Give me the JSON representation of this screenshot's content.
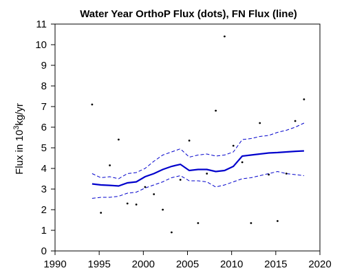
{
  "chart_data": {
    "type": "line",
    "title": "Water Year OrthoP Flux (dots), FN Flux (line)",
    "ylabel": {
      "prefix": "Flux in 10",
      "superscript": "3",
      "suffix": "kg/yr"
    },
    "xlabel": "",
    "xlim": [
      1990,
      2020
    ],
    "ylim": [
      0,
      11
    ],
    "xticks": [
      1990,
      1995,
      2000,
      2005,
      2010,
      2015,
      2020
    ],
    "yticks": [
      0,
      1,
      2,
      3,
      4,
      5,
      6,
      7,
      8,
      9,
      10,
      11
    ],
    "grid": false,
    "legend": "none",
    "colors": {
      "series": "#0000cc",
      "dots": "#000000",
      "axis": "#000000"
    },
    "points": {
      "x": [
        1994.2,
        1995.2,
        1996.2,
        1997.2,
        1998.2,
        1999.2,
        2000.2,
        2001.2,
        2002.2,
        2003.2,
        2004.2,
        2005.2,
        2006.2,
        2007.2,
        2008.2,
        2009.2,
        2010.2,
        2011.2,
        2012.2,
        2013.2,
        2014.2,
        2015.2,
        2016.2,
        2017.2,
        2018.2
      ],
      "y": [
        7.1,
        1.85,
        4.15,
        5.4,
        2.3,
        2.25,
        3.1,
        2.75,
        2.0,
        0.9,
        3.45,
        5.35,
        1.35,
        3.75,
        6.8,
        10.4,
        5.1,
        4.3,
        1.35,
        6.2,
        3.7,
        1.45,
        3.75,
        6.3,
        7.35
      ]
    },
    "series": [
      {
        "style": "solid",
        "x": [
          1994.2,
          1995.2,
          1996.2,
          1997.2,
          1998.2,
          1999.2,
          2000.2,
          2001.2,
          2002.2,
          2003.2,
          2004.2,
          2005.2,
          2006.2,
          2007.2,
          2008.2,
          2009.2,
          2010.2,
          2011.2,
          2012.2,
          2013.2,
          2014.2,
          2015.2,
          2016.2,
          2017.2,
          2018.2
        ],
        "y": [
          3.25,
          3.2,
          3.18,
          3.15,
          3.3,
          3.35,
          3.6,
          3.75,
          3.95,
          4.1,
          4.2,
          3.9,
          3.95,
          3.95,
          3.85,
          3.9,
          4.1,
          4.6,
          4.65,
          4.7,
          4.75,
          4.77,
          4.8,
          4.83,
          4.85
        ]
      },
      {
        "style": "dashed",
        "x": [
          1994.2,
          1995.2,
          1996.2,
          1997.2,
          1998.2,
          1999.2,
          2000.2,
          2001.2,
          2002.2,
          2003.2,
          2004.2,
          2005.2,
          2006.2,
          2007.2,
          2008.2,
          2009.2,
          2010.2,
          2011.2,
          2012.2,
          2013.2,
          2014.2,
          2015.2,
          2016.2,
          2017.2,
          2018.2
        ],
        "y": [
          3.75,
          3.55,
          3.6,
          3.5,
          3.75,
          3.8,
          4.0,
          4.35,
          4.65,
          4.8,
          4.95,
          4.55,
          4.65,
          4.7,
          4.6,
          4.65,
          4.8,
          5.4,
          5.45,
          5.55,
          5.6,
          5.75,
          5.85,
          6.0,
          6.2
        ]
      },
      {
        "style": "dashed",
        "x": [
          1994.2,
          1995.2,
          1996.2,
          1997.2,
          1998.2,
          1999.2,
          2000.2,
          2001.2,
          2002.2,
          2003.2,
          2004.2,
          2005.2,
          2006.2,
          2007.2,
          2008.2,
          2009.2,
          2010.2,
          2011.2,
          2012.2,
          2013.2,
          2014.2,
          2015.2,
          2016.2,
          2017.2,
          2018.2
        ],
        "y": [
          2.55,
          2.6,
          2.6,
          2.65,
          2.8,
          2.85,
          3.05,
          3.2,
          3.35,
          3.55,
          3.65,
          3.4,
          3.4,
          3.35,
          3.1,
          3.2,
          3.35,
          3.5,
          3.55,
          3.65,
          3.75,
          3.85,
          3.75,
          3.7,
          3.65
        ]
      }
    ]
  }
}
